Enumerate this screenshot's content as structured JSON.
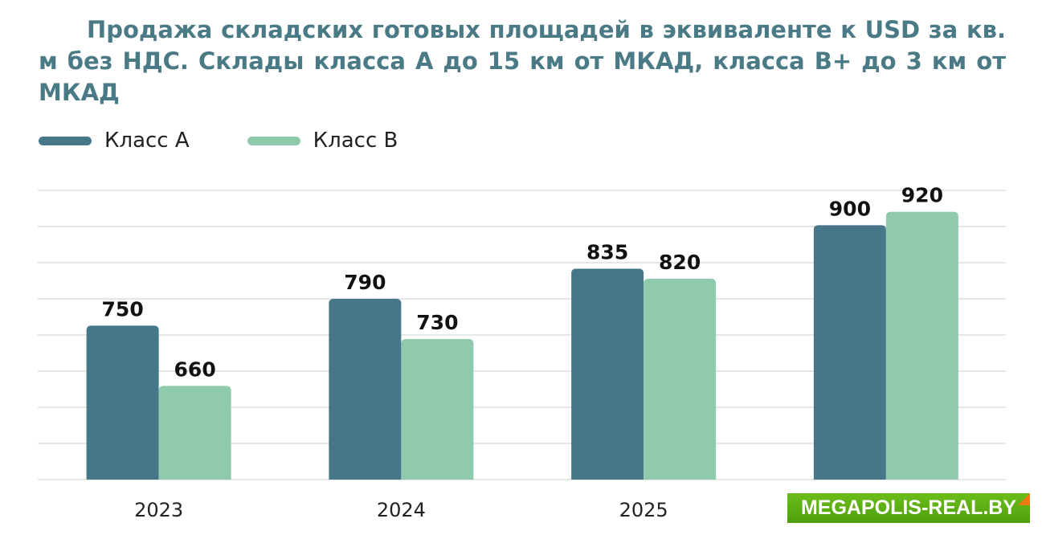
{
  "chart_data": {
    "type": "bar",
    "title": "Продажа складских готовых площадей в эквиваленте к USD за кв. м без НДС. Склады класса А до 15 км от МКАД, класса В+ до 3 км от МКАД",
    "categories": [
      "2023",
      "2024",
      "2025",
      ""
    ],
    "series": [
      {
        "name": "Класс А",
        "values": [
          750,
          790,
          835,
          900
        ],
        "color": "#467788"
      },
      {
        "name": "Класс В",
        "values": [
          660,
          730,
          820,
          920
        ],
        "color": "#8fcaad"
      }
    ],
    "xlabel": "",
    "ylabel": "",
    "ylim": [
      520,
      952
    ],
    "grid": true,
    "legend": "top-left",
    "data_labels": true
  },
  "watermark": "MEGAPOLIS-REAL.BY"
}
